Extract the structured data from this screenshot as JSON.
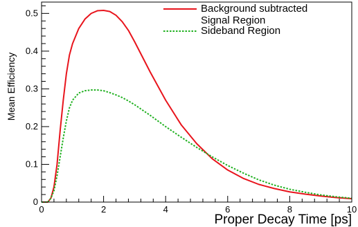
{
  "chart_data": {
    "type": "line",
    "title": "",
    "xlabel": "Proper Decay Time [ps]",
    "ylabel": "Mean Efficiency",
    "xlim": [
      0,
      10
    ],
    "ylim": [
      0,
      0.53
    ],
    "x_ticks": [
      0,
      2,
      4,
      6,
      8,
      10
    ],
    "x_tick_labels": [
      "0",
      "2",
      "4",
      "6",
      "8",
      "10"
    ],
    "y_ticks": [
      0,
      0.1,
      0.2,
      0.3,
      0.4,
      0.5
    ],
    "y_tick_labels": [
      "0",
      "0.1",
      "0.2",
      "0.3",
      "0.4",
      "0.5"
    ],
    "grid": false,
    "legend_position": "top-right",
    "series": [
      {
        "name": "Background subtracted Signal Region",
        "legend_lines": [
          "Background subtracted",
          "Signal Region"
        ],
        "color": "#e8141c",
        "style": "solid",
        "x": [
          0,
          0.2,
          0.3,
          0.4,
          0.5,
          0.6,
          0.7,
          0.8,
          0.9,
          1.0,
          1.2,
          1.4,
          1.6,
          1.8,
          2.0,
          2.2,
          2.4,
          2.6,
          2.8,
          3.0,
          3.5,
          4.0,
          4.5,
          5.0,
          5.5,
          6.0,
          6.5,
          7.0,
          7.5,
          8.0,
          8.5,
          9.0,
          9.5,
          10.0
        ],
        "y": [
          0,
          0.0,
          0.01,
          0.04,
          0.1,
          0.19,
          0.27,
          0.34,
          0.39,
          0.42,
          0.46,
          0.485,
          0.5,
          0.507,
          0.508,
          0.505,
          0.495,
          0.478,
          0.455,
          0.425,
          0.345,
          0.27,
          0.205,
          0.155,
          0.115,
          0.085,
          0.063,
          0.047,
          0.036,
          0.027,
          0.021,
          0.016,
          0.012,
          0.009
        ]
      },
      {
        "name": "Sideband Region",
        "legend_lines": [
          "Sideband Region"
        ],
        "color": "#20b020",
        "style": "dotted",
        "x": [
          0,
          0.2,
          0.3,
          0.4,
          0.5,
          0.6,
          0.7,
          0.8,
          0.9,
          1.0,
          1.2,
          1.4,
          1.6,
          1.8,
          2.0,
          2.2,
          2.4,
          2.6,
          2.8,
          3.0,
          3.5,
          4.0,
          4.5,
          5.0,
          5.5,
          6.0,
          6.5,
          7.0,
          7.5,
          8.0,
          8.5,
          9.0,
          9.5,
          10.0
        ],
        "y": [
          0,
          0.0,
          0.01,
          0.03,
          0.07,
          0.12,
          0.17,
          0.215,
          0.25,
          0.27,
          0.289,
          0.295,
          0.297,
          0.297,
          0.295,
          0.29,
          0.284,
          0.277,
          0.268,
          0.258,
          0.23,
          0.2,
          0.172,
          0.145,
          0.12,
          0.097,
          0.077,
          0.059,
          0.045,
          0.034,
          0.026,
          0.019,
          0.014,
          0.01
        ]
      }
    ]
  }
}
